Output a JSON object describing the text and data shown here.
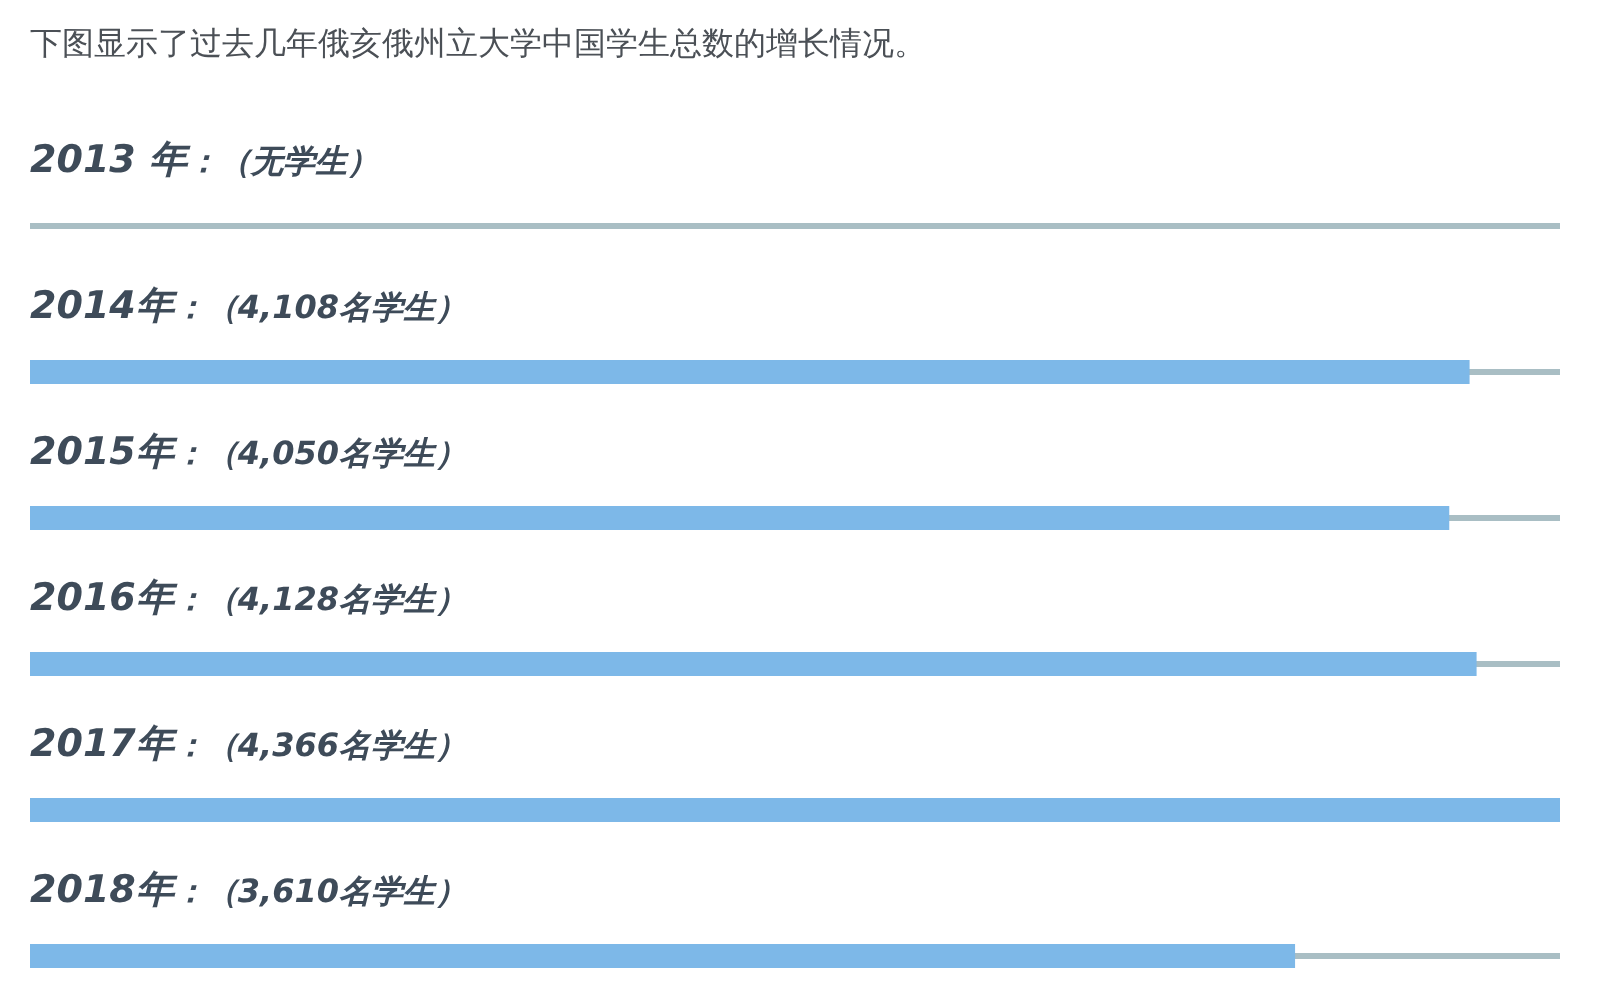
{
  "chart_data": {
    "type": "bar",
    "orientation": "horizontal",
    "title": "下图显示了过去几年俄亥俄州立大学中国学生总数的增长情况。",
    "categories": [
      "2013 年",
      "2014年",
      "2015年",
      "2016年",
      "2017年",
      "2018年"
    ],
    "values": [
      null,
      4108,
      4050,
      4128,
      4366,
      3610
    ],
    "value_labels": [
      "：（无学生）",
      "：（4,108名学生）",
      "：（4,050名学生）",
      "：（4,128名学生）",
      "：（4,366名学生）",
      "：（3,610名学生）"
    ],
    "color": "#7db8e8",
    "xlim": [
      0,
      4366
    ],
    "tick_labels": false
  }
}
